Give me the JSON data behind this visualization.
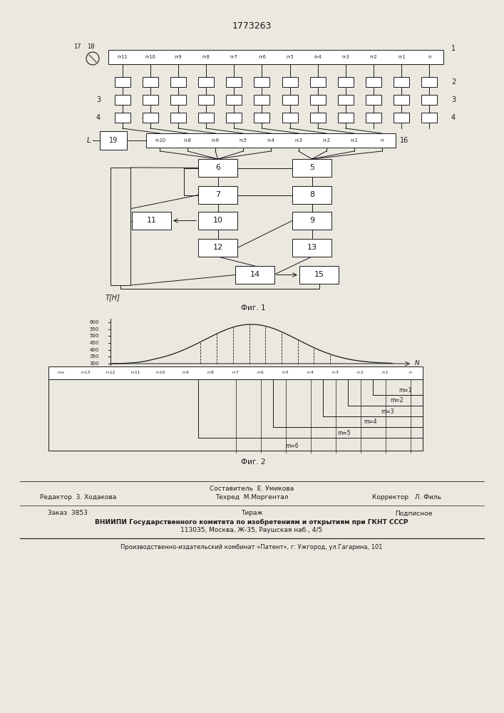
{
  "title": "1773263",
  "bg_color": "#ebe8e0",
  "line_color": "#1a1a1a",
  "fig1_caption": "Фиг. 1",
  "fig2_caption": "Фиг. 2",
  "fig1_ylabel": "T[Н]",
  "top_bar_labels": [
    "п·11",
    "п·10",
    "п·9",
    "п·8",
    "п·7",
    "п·6",
    "п·5",
    "п·4",
    "п·3",
    "п·2",
    "п·1",
    "п"
  ],
  "mid_bar_labels": [
    "п-10",
    "п-8",
    "п-6",
    "п-5",
    "п-4",
    "п-3",
    "п-2",
    "п-1",
    "п"
  ],
  "fig2_bar_labels": [
    "п-н",
    "п-13",
    "п-12",
    "п-11",
    "п-10",
    "п-9",
    "п-8",
    "п-7",
    "п-6",
    "п-5",
    "п-4",
    "п-3",
    "п-2",
    "п-1",
    "п"
  ],
  "ytick_vals": [
    300,
    350,
    400,
    450,
    500,
    550,
    600
  ],
  "m_labels": [
    "m=1",
    "m=2",
    "m=3",
    "m=4",
    "m=5",
    "m=6"
  ],
  "footer_sestavitel": "Составитель  Е. Умикова",
  "footer_redaktor": "Редактор  3. Ходакова",
  "footer_tehred": "Техред  М.Моргентал",
  "footer_korrektor": "Корректор   Л. Филь",
  "footer_zakaz": "Заказ  3853",
  "footer_tirazh": "Тираж",
  "footer_podpis": "Подписное",
  "footer_vniiipi": "ВНИИПИ Государственного комитета по изобретениям и открытиям при ГКНТ СССР",
  "footer_addr": "113035, Москва, Ж-35, Раушская наб., 4/5",
  "footer_proizv": "Производственно-издательский комбинат «Патент», г: Ужгород, ул.Гагарина, 101"
}
